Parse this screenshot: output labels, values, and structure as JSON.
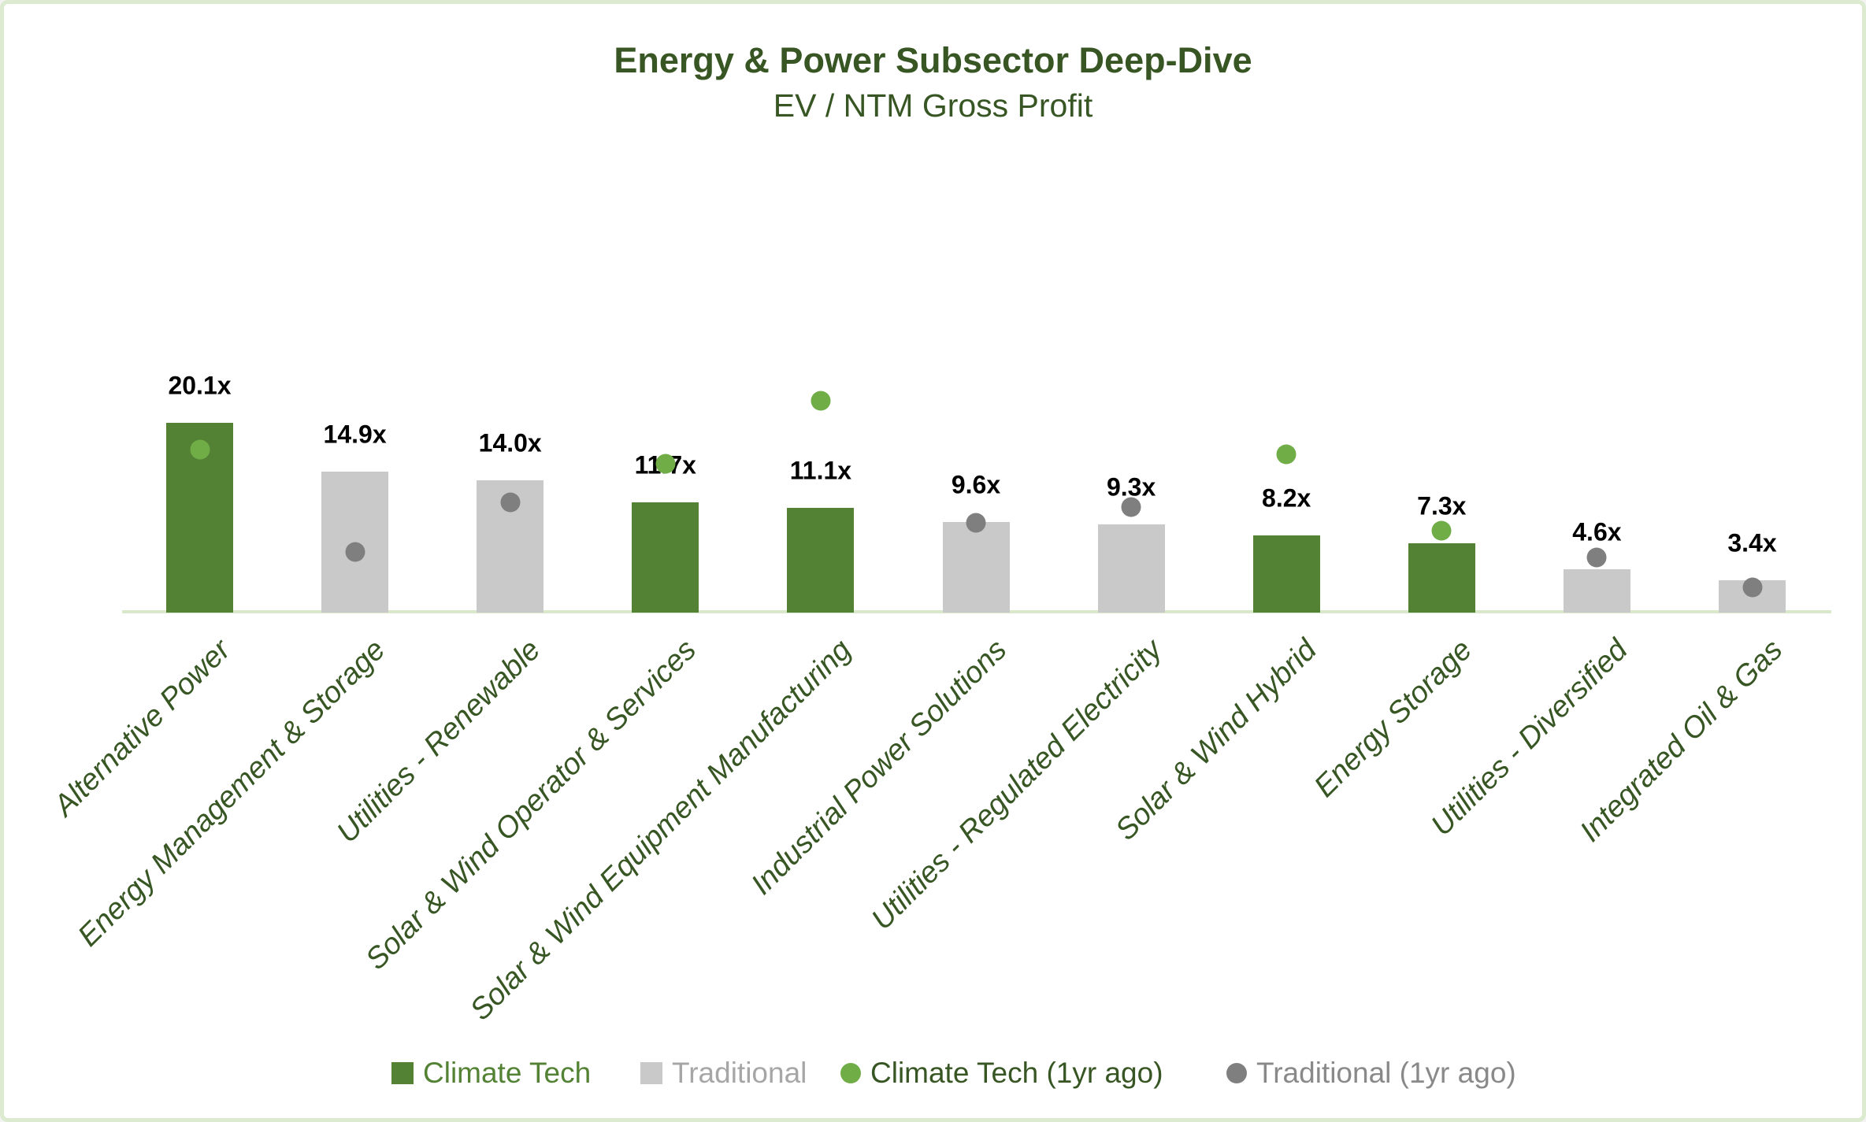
{
  "page": {
    "background": "#FFFFFF",
    "border_color": "#DCEBCF"
  },
  "header": {
    "title": "Energy & Power Subsector Deep-Dive",
    "subtitle": "EV / NTM Gross Profit",
    "title_color": "#375623"
  },
  "chart_data": {
    "type": "bar",
    "title": "Energy & Power Subsector Deep-Dive",
    "subtitle": "EV / NTM Gross Profit",
    "categories": [
      "Alternative Power",
      "Energy Management & Storage",
      "Utilities - Renewable",
      "Solar & Wind Operator & Services",
      "Solar & Wind Equipment Manufacturing",
      "Industrial Power Solutions",
      "Utilities - Regulated Electricity",
      "Solar & Wind Hybrid",
      "Energy Storage",
      "Utilities - Diversified",
      "Integrated Oil & Gas"
    ],
    "data_labels": [
      "20.1x",
      "14.9x",
      "14.0x",
      "11.7x",
      "11.1x",
      "9.6x",
      "9.3x",
      "8.2x",
      "7.3x",
      "4.6x",
      "3.4x"
    ],
    "bar_series": [
      {
        "name": "Climate Tech",
        "color": "#548235",
        "values": [
          20.1,
          null,
          null,
          11.7,
          11.1,
          null,
          null,
          8.2,
          7.3,
          null,
          null
        ]
      },
      {
        "name": "Traditional",
        "color": "#C9C9C9",
        "values": [
          null,
          14.9,
          14.0,
          null,
          null,
          9.6,
          9.3,
          null,
          null,
          4.6,
          3.4
        ]
      }
    ],
    "point_series": [
      {
        "name": "Climate Tech (1yr ago)",
        "color": "#70AD47",
        "values": [
          17.3,
          null,
          null,
          15.8,
          22.4,
          null,
          null,
          16.8,
          8.7,
          null,
          null
        ]
      },
      {
        "name": "Traditional (1yr ago)",
        "color": "#7F7F7F",
        "values": [
          null,
          6.4,
          11.7,
          null,
          null,
          9.5,
          11.2,
          null,
          null,
          5.8,
          2.7
        ]
      }
    ],
    "value_suffix": "x",
    "ylim": [
      0,
      25
    ],
    "grid": false,
    "value_axis_visible": false,
    "legend_position": "bottom",
    "baseline_color": "#D9E7CA",
    "category_label_color": "#375623",
    "data_label_color": "#000000"
  },
  "legend": {
    "items": [
      {
        "label": "Climate Tech",
        "marker": "square",
        "marker_color": "#548235",
        "text_color": "#548235"
      },
      {
        "label": "Traditional",
        "marker": "square",
        "marker_color": "#C9C9C9",
        "text_color": "#A6A6A6"
      },
      {
        "label": "Climate Tech (1yr ago)",
        "marker": "circle",
        "marker_color": "#70AD47",
        "text_color": "#375623"
      },
      {
        "label": "Traditional (1yr ago)",
        "marker": "circle",
        "marker_color": "#7F7F7F",
        "text_color": "#898989"
      }
    ]
  }
}
